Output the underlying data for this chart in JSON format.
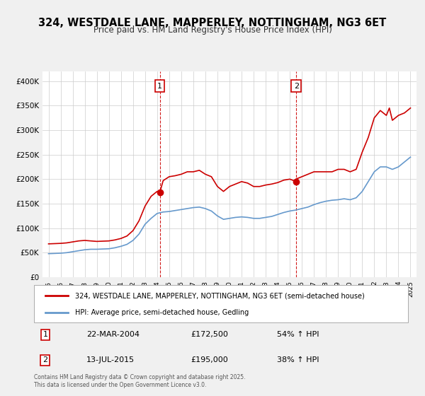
{
  "title": "324, WESTDALE LANE, MAPPERLEY, NOTTINGHAM, NG3 6ET",
  "subtitle": "Price paid vs. HM Land Registry's House Price Index (HPI)",
  "title_fontsize": 11,
  "subtitle_fontsize": 9,
  "bg_color": "#f0f0f0",
  "plot_bg_color": "#ffffff",
  "red_line_color": "#cc0000",
  "blue_line_color": "#6699cc",
  "vline_color": "#cc0000",
  "grid_color": "#cccccc",
  "ylim": [
    0,
    420000
  ],
  "yticks": [
    0,
    50000,
    100000,
    150000,
    200000,
    250000,
    300000,
    350000,
    400000
  ],
  "ytick_labels": [
    "£0",
    "£50K",
    "£100K",
    "£150K",
    "£200K",
    "£250K",
    "£300K",
    "£350K",
    "£400K"
  ],
  "xlim_start": 1994.5,
  "xlim_end": 2025.5,
  "xticks": [
    1995,
    1996,
    1997,
    1998,
    1999,
    2000,
    2001,
    2002,
    2003,
    2004,
    2005,
    2006,
    2007,
    2008,
    2009,
    2010,
    2011,
    2012,
    2013,
    2014,
    2015,
    2016,
    2017,
    2018,
    2019,
    2020,
    2021,
    2022,
    2023,
    2024,
    2025
  ],
  "sale1_x": 2004.22,
  "sale1_y": 172500,
  "sale1_label": "1",
  "sale1_date": "22-MAR-2004",
  "sale1_price": "£172,500",
  "sale1_hpi": "54% ↑ HPI",
  "sale2_x": 2015.53,
  "sale2_y": 195000,
  "sale2_label": "2",
  "sale2_date": "13-JUL-2015",
  "sale2_price": "£195,000",
  "sale2_hpi": "38% ↑ HPI",
  "legend_line1": "324, WESTDALE LANE, MAPPERLEY, NOTTINGHAM, NG3 6ET (semi-detached house)",
  "legend_line2": "HPI: Average price, semi-detached house, Gedling",
  "footer": "Contains HM Land Registry data © Crown copyright and database right 2025.\nThis data is licensed under the Open Government Licence v3.0.",
  "red_hpi_data": {
    "years": [
      1995.0,
      1995.5,
      1996.0,
      1996.5,
      1997.0,
      1997.5,
      1998.0,
      1998.5,
      1999.0,
      1999.5,
      2000.0,
      2000.5,
      2001.0,
      2001.5,
      2002.0,
      2002.5,
      2003.0,
      2003.5,
      2004.0,
      2004.22,
      2004.5,
      2005.0,
      2005.5,
      2006.0,
      2006.5,
      2007.0,
      2007.5,
      2008.0,
      2008.5,
      2009.0,
      2009.5,
      2010.0,
      2010.5,
      2011.0,
      2011.5,
      2012.0,
      2012.5,
      2013.0,
      2013.5,
      2014.0,
      2014.5,
      2015.0,
      2015.53,
      2015.5,
      2016.0,
      2016.5,
      2017.0,
      2017.5,
      2018.0,
      2018.5,
      2019.0,
      2019.5,
      2020.0,
      2020.5,
      2021.0,
      2021.5,
      2022.0,
      2022.5,
      2023.0,
      2023.25,
      2023.5,
      2024.0,
      2024.5,
      2025.0
    ],
    "values": [
      68000,
      68500,
      69000,
      70000,
      72000,
      74000,
      75000,
      74000,
      73000,
      73500,
      74000,
      76000,
      79000,
      84000,
      95000,
      115000,
      145000,
      165000,
      175000,
      172500,
      197000,
      205000,
      207000,
      210000,
      215000,
      215000,
      218000,
      210000,
      205000,
      185000,
      175000,
      185000,
      190000,
      195000,
      192000,
      185000,
      185000,
      188000,
      190000,
      193000,
      198000,
      200000,
      195000,
      200000,
      205000,
      210000,
      215000,
      215000,
      215000,
      215000,
      220000,
      220000,
      215000,
      220000,
      255000,
      285000,
      325000,
      340000,
      330000,
      345000,
      320000,
      330000,
      335000,
      345000
    ]
  },
  "blue_hpi_data": {
    "years": [
      1995.0,
      1995.5,
      1996.0,
      1996.5,
      1997.0,
      1997.5,
      1998.0,
      1998.5,
      1999.0,
      1999.5,
      2000.0,
      2000.5,
      2001.0,
      2001.5,
      2002.0,
      2002.5,
      2003.0,
      2003.5,
      2004.0,
      2004.5,
      2005.0,
      2005.5,
      2006.0,
      2006.5,
      2007.0,
      2007.5,
      2008.0,
      2008.5,
      2009.0,
      2009.5,
      2010.0,
      2010.5,
      2011.0,
      2011.5,
      2012.0,
      2012.5,
      2013.0,
      2013.5,
      2014.0,
      2014.5,
      2015.0,
      2015.5,
      2016.0,
      2016.5,
      2017.0,
      2017.5,
      2018.0,
      2018.5,
      2019.0,
      2019.5,
      2020.0,
      2020.5,
      2021.0,
      2021.5,
      2022.0,
      2022.5,
      2023.0,
      2023.5,
      2024.0,
      2024.5,
      2025.0
    ],
    "values": [
      48000,
      48500,
      49000,
      50000,
      52000,
      54000,
      56000,
      57000,
      57000,
      57500,
      58000,
      60000,
      63000,
      67000,
      75000,
      88000,
      108000,
      120000,
      130000,
      133000,
      134000,
      136000,
      138000,
      140000,
      142000,
      143000,
      140000,
      135000,
      125000,
      118000,
      120000,
      122000,
      123000,
      122000,
      120000,
      120000,
      122000,
      124000,
      128000,
      132000,
      135000,
      137000,
      140000,
      143000,
      148000,
      152000,
      155000,
      157000,
      158000,
      160000,
      158000,
      162000,
      175000,
      195000,
      215000,
      225000,
      225000,
      220000,
      225000,
      235000,
      245000
    ]
  }
}
